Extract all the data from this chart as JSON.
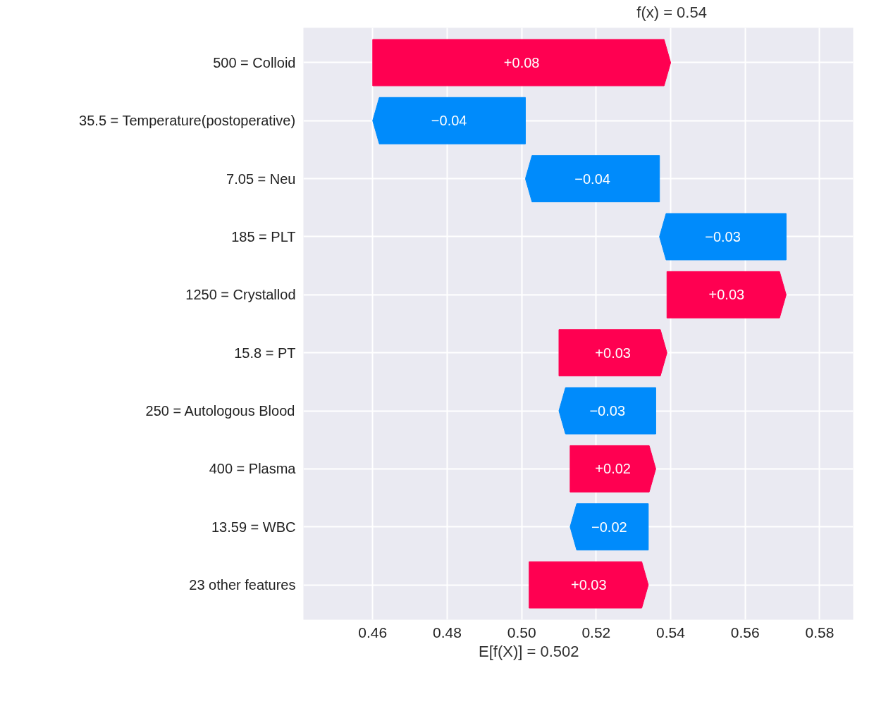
{
  "chart_data": {
    "type": "bar",
    "orientation": "horizontal",
    "categories": [
      "500 = Colloid",
      "35.5 = Temperature(postoperative)",
      "7.05 = Neu",
      "185 = PLT",
      "1250 = Crystallod",
      "15.8 = PT",
      "250 = Autologous Blood",
      "400 = Plasma",
      "13.59 = WBC",
      "23 other features"
    ],
    "base": [
      0.46,
      0.501,
      0.537,
      0.571,
      0.539,
      0.51,
      0.536,
      0.513,
      0.534,
      0.502
    ],
    "values": [
      0.08,
      -0.041,
      -0.036,
      -0.034,
      0.032,
      0.029,
      -0.026,
      0.023,
      -0.021,
      0.032
    ],
    "value_labels": [
      "+0.08",
      "−0.04",
      "−0.04",
      "−0.03",
      "+0.03",
      "+0.03",
      "−0.03",
      "+0.02",
      "−0.02",
      "+0.03"
    ],
    "colors": [
      "#ff0051",
      "#008bfb",
      "#008bfb",
      "#008bfb",
      "#ff0051",
      "#ff0051",
      "#008bfb",
      "#ff0051",
      "#008bfb",
      "#ff0051"
    ],
    "xlim": [
      0.4414,
      0.589
    ],
    "xticks": [
      0.46,
      0.48,
      {
        "value": 0.5,
        "label": "0.50"
      },
      0.52,
      0.54,
      0.56,
      0.58
    ],
    "grid": true,
    "annotations": [
      "f(x) = 0.54",
      "E[f(X)] = 0.502"
    ]
  }
}
